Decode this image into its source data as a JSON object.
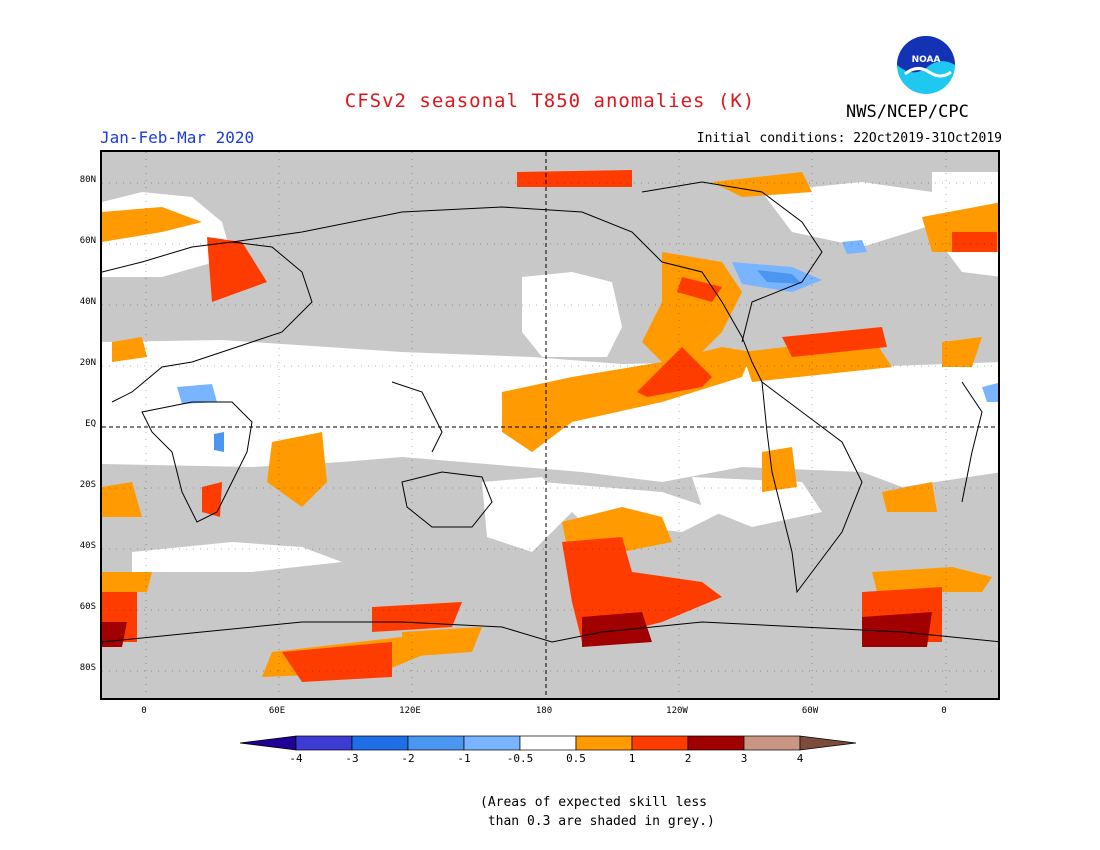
{
  "header": {
    "title": "CFSv2 seasonal T850 anomalies (K)",
    "period": "Jan-Feb-Mar 2020",
    "initial_conditions": "Initial conditions: 22Oct2019-31Oct2019",
    "agency": "NWS/NCEP/CPC",
    "logo_text": "NOAA"
  },
  "colors": {
    "title": "#e0141e",
    "period": "#1e3cdc",
    "skill_grey": "#c8c8c8",
    "neutral": "#ffffff",
    "warm_05_1": "#ff9a00",
    "warm_1_2": "#ff3c00",
    "warm_2_3": "#a00000",
    "cool_m1_m05": "#78b4ff",
    "cool_m2_m1": "#4b96f0"
  },
  "map": {
    "lat_labels": [
      "80N",
      "60N",
      "40N",
      "20N",
      "EQ",
      "20S",
      "40S",
      "60S",
      "80S"
    ],
    "lon_labels": [
      "0",
      "60E",
      "120E",
      "180",
      "120W",
      "60W",
      "0"
    ]
  },
  "legend": {
    "labels": [
      "-4",
      "-3",
      "-2",
      "-1",
      "-0.5",
      "0.5",
      "1",
      "2",
      "3",
      "4"
    ],
    "colors": [
      "#1e0096",
      "#3c3cd2",
      "#1e6ee6",
      "#4b96f0",
      "#78b4ff",
      "#ffffff",
      "#ff9a00",
      "#ff3c00",
      "#a00000",
      "#c89682",
      "#7d4b3c"
    ]
  },
  "note": {
    "line1": "(Areas of expected skill less",
    "line2": " than 0.3 are shaded in grey.)"
  }
}
